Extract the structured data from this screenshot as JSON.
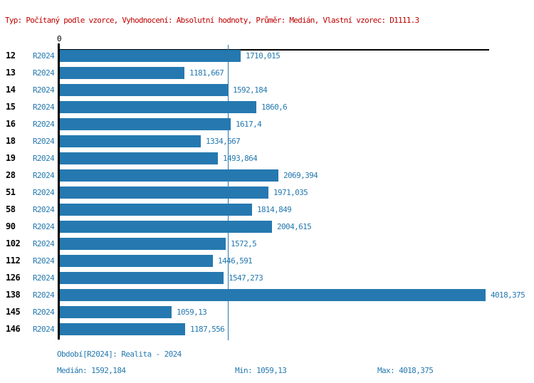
{
  "header": {
    "settings_line": "Typ: Počítaný podle vzorce, Vyhodnocení: Absolutní hodnoty, Průměr: Medián, Vlastní vzorec: D1111.3"
  },
  "axis": {
    "zero_label": "0"
  },
  "colors": {
    "header_red": "#c00000",
    "bar_blue": "#2579b0",
    "text_blue": "#2579b0",
    "axis_black": "#000000"
  },
  "chart_data": {
    "type": "bar",
    "orientation": "horizontal",
    "title": "",
    "xlabel": "",
    "ylabel": "",
    "xlim": [
      0,
      4018.375
    ],
    "grid": false,
    "categories": [
      "12",
      "13",
      "14",
      "15",
      "16",
      "18",
      "19",
      "28",
      "51",
      "58",
      "90",
      "102",
      "112",
      "126",
      "138",
      "145",
      "146"
    ],
    "series_label": "R2024",
    "values": [
      1710.015,
      1181.667,
      1592.184,
      1860.6,
      1617.4,
      1334.667,
      1493.864,
      2069.394,
      1971.035,
      1814.849,
      2004.615,
      1572.5,
      1446.591,
      1547.273,
      4018.375,
      1059.13,
      1187.556
    ],
    "value_labels": [
      "1710,015",
      "1181,667",
      "1592,184",
      "1860,6",
      "1617,4",
      "1334,667",
      "1493,864",
      "2069,394",
      "1971,035",
      "1814,849",
      "2004,615",
      "1572,5",
      "1446,591",
      "1547,273",
      "4018,375",
      "1059,13",
      "1187,556"
    ],
    "median_value": 1592.184,
    "min_value": 1059.13,
    "max_value": 4018.375
  },
  "footer": {
    "period": "Období[R2024]: Realita - 2024",
    "median": "Medián: 1592,184",
    "min": "Min: 1059,13",
    "max": "Max: 4018,375"
  }
}
